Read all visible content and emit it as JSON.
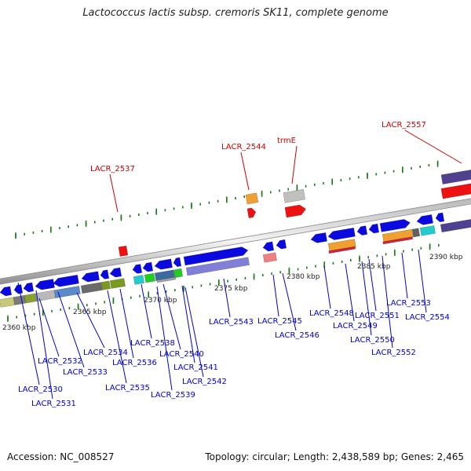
{
  "title": "Lactococcus lactis subsp. cremoris SK11, complete genome",
  "accession": "Accession: NC_008527",
  "summary": "Topology: circular; Length: 2,438,589 bp; Genes: 2,465",
  "ticks": [
    "2360 kbp",
    "2365 kbp",
    "2370 kbp",
    "2375 kbp",
    "2380 kbp",
    "2385 kbp",
    "2390 kbp"
  ],
  "labels_above": [
    "LACR_2537",
    "LACR_2544",
    "trmE",
    "LACR_2557"
  ],
  "labels_below": [
    "LACR_2530",
    "LACR_2531",
    "LACR_2532",
    "LACR_2533",
    "LACR_2534",
    "LACR_2535",
    "LACR_2536",
    "LACR_2538",
    "LACR_2539",
    "LACR_2540",
    "LACR_2541",
    "LACR_2542",
    "LACR_2543",
    "LACR_2545",
    "LACR_2546",
    "LACR_2548",
    "LACR_2549",
    "LACR_2550",
    "LACR_2551",
    "LACR_2552",
    "LACR_2553",
    "LACR_2554"
  ],
  "colors": {
    "above_label": "#cc0000",
    "below_label": "#0000cc",
    "gene": "#0a0ae0",
    "tick_mark": "#1a7a1a",
    "backbone": "#8c8c8c"
  }
}
